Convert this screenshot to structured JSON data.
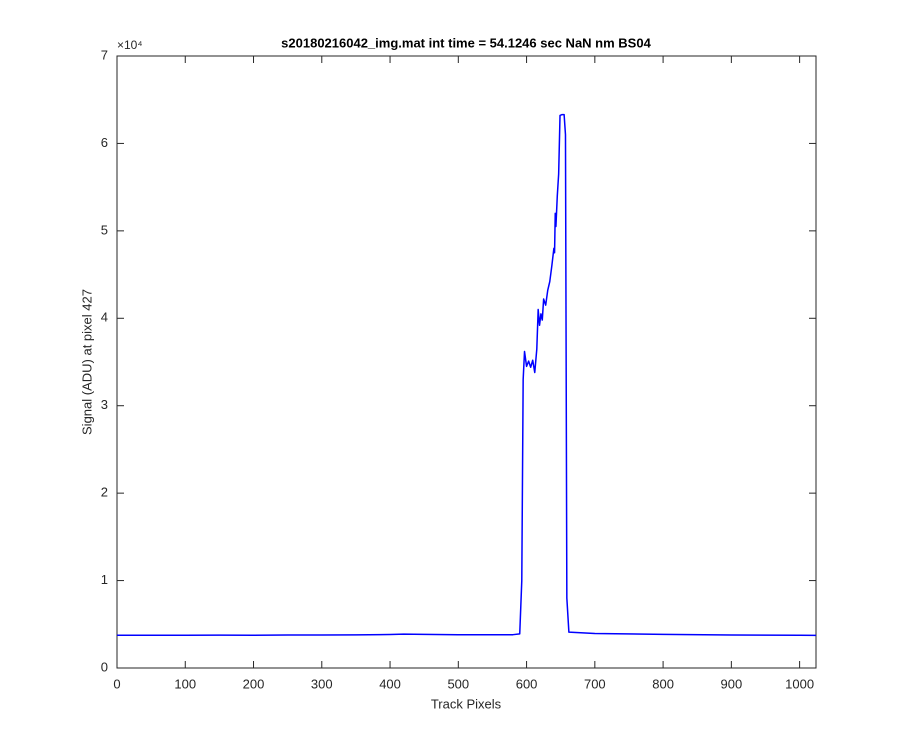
{
  "chart_data": {
    "type": "line",
    "title": "s20180216042_img.mat int time = 54.1246 sec  NaN nm BS04",
    "x_label": "Track Pixels",
    "y_label": "Signal (ADU) at pixel 427",
    "y_multiplier": "×10⁴",
    "xlim": [
      0,
      1024
    ],
    "xticks": [
      0,
      100,
      200,
      300,
      400,
      500,
      600,
      700,
      800,
      900,
      1000
    ],
    "ylim": [
      0,
      70000
    ],
    "yticks": [
      {
        "value": 0,
        "label": "0"
      },
      {
        "value": 10000,
        "label": "1"
      },
      {
        "value": 20000,
        "label": "2"
      },
      {
        "value": 30000,
        "label": "3"
      },
      {
        "value": 40000,
        "label": "4"
      },
      {
        "value": 50000,
        "label": "5"
      },
      {
        "value": 60000,
        "label": "6"
      },
      {
        "value": 70000,
        "label": "7"
      }
    ],
    "grid": false,
    "x": [
      0,
      50,
      100,
      150,
      200,
      250,
      300,
      350,
      400,
      420,
      450,
      500,
      550,
      580,
      590,
      593,
      595,
      597,
      600,
      603,
      606,
      609,
      612,
      615,
      617,
      619,
      621,
      623,
      625,
      628,
      631,
      634,
      637,
      640,
      641,
      642,
      643,
      645,
      647,
      649,
      652,
      655,
      657,
      659,
      662,
      700,
      800,
      900,
      1000,
      1024
    ],
    "series": [
      {
        "color": "#0000ff",
        "values": [
          3750,
          3740,
          3750,
          3760,
          3750,
          3770,
          3780,
          3790,
          3830,
          3870,
          3850,
          3810,
          3800,
          3810,
          3900,
          10000,
          33000,
          36200,
          34500,
          35100,
          34400,
          35200,
          33800,
          36500,
          41000,
          39200,
          40500,
          39800,
          42200,
          41500,
          43200,
          44200,
          46000,
          48000,
          47500,
          52000,
          50500,
          54000,
          56500,
          63200,
          63300,
          63300,
          61000,
          8000,
          4100,
          3950,
          3850,
          3780,
          3740,
          3730
        ]
      }
    ]
  }
}
